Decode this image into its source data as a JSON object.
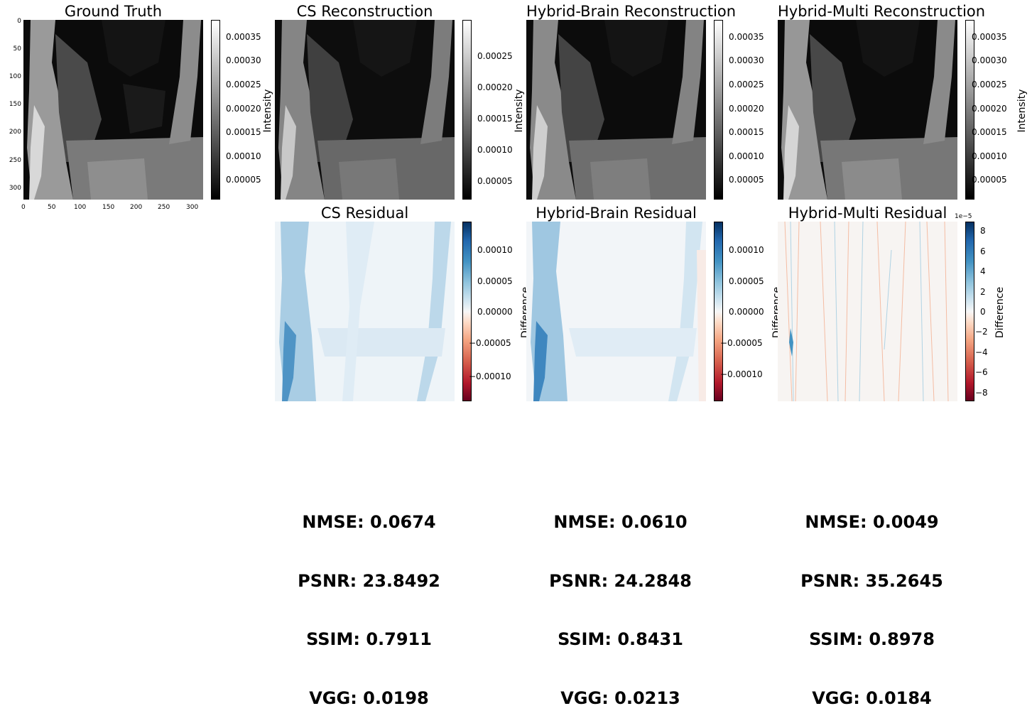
{
  "panels": {
    "gt": {
      "title": "Ground Truth",
      "colorbar_label": "",
      "colorbar_ticks": [
        "0.00035",
        "0.00030",
        "0.00025",
        "0.00020",
        "0.00015",
        "0.00010",
        "0.00005"
      ],
      "x_ticks": [
        "0",
        "50",
        "100",
        "150",
        "200",
        "250",
        "300"
      ],
      "y_ticks": [
        "0",
        "50",
        "100",
        "150",
        "200",
        "250",
        "300"
      ]
    },
    "cs_recon": {
      "title": "CS Reconstruction",
      "colorbar_label": "Intensity",
      "colorbar_ticks": [
        "0.00025",
        "0.00020",
        "0.00015",
        "0.00010",
        "0.00005"
      ]
    },
    "brain_recon": {
      "title": "Hybrid-Brain Reconstruction",
      "colorbar_label": "Intensity",
      "colorbar_ticks": [
        "0.00035",
        "0.00030",
        "0.00025",
        "0.00020",
        "0.00015",
        "0.00010",
        "0.00005"
      ]
    },
    "multi_recon": {
      "title": "Hybrid-Multi Reconstruction",
      "colorbar_label": "Intensity",
      "colorbar_ticks": [
        "0.00035",
        "0.00030",
        "0.00025",
        "0.00020",
        "0.00015",
        "0.00010",
        "0.00005"
      ]
    },
    "cs_resid": {
      "title": "CS Residual",
      "colorbar_label": "Difference",
      "colorbar_ticks": [
        "0.00010",
        "0.00005",
        "0.00000",
        "−0.00005",
        "−0.00010"
      ]
    },
    "brain_resid": {
      "title": "Hybrid-Brain Residual",
      "colorbar_label": "Difference",
      "colorbar_ticks": [
        "0.00010",
        "0.00005",
        "0.00000",
        "−0.00005",
        "−0.00010"
      ]
    },
    "multi_resid": {
      "title": "Hybrid-Multi Residual",
      "colorbar_label": "Difference",
      "colorbar_offset": "1e−5",
      "colorbar_ticks": [
        "8",
        "6",
        "4",
        "2",
        "0",
        "−2",
        "−4",
        "−6",
        "−8"
      ]
    }
  },
  "metrics": {
    "cs": {
      "nmse": "NMSE: 0.0674",
      "psnr": "PSNR: 23.8492",
      "ssim": "SSIM: 0.7911",
      "vgg": "VGG: 0.0198"
    },
    "brain": {
      "nmse": "NMSE: 0.0610",
      "psnr": "PSNR: 24.2848",
      "ssim": "SSIM: 0.8431",
      "vgg": "VGG: 0.0213"
    },
    "multi": {
      "nmse": "NMSE: 0.0049",
      "psnr": "PSNR: 35.2645",
      "ssim": "SSIM: 0.8978",
      "vgg": "VGG: 0.0184"
    }
  }
}
